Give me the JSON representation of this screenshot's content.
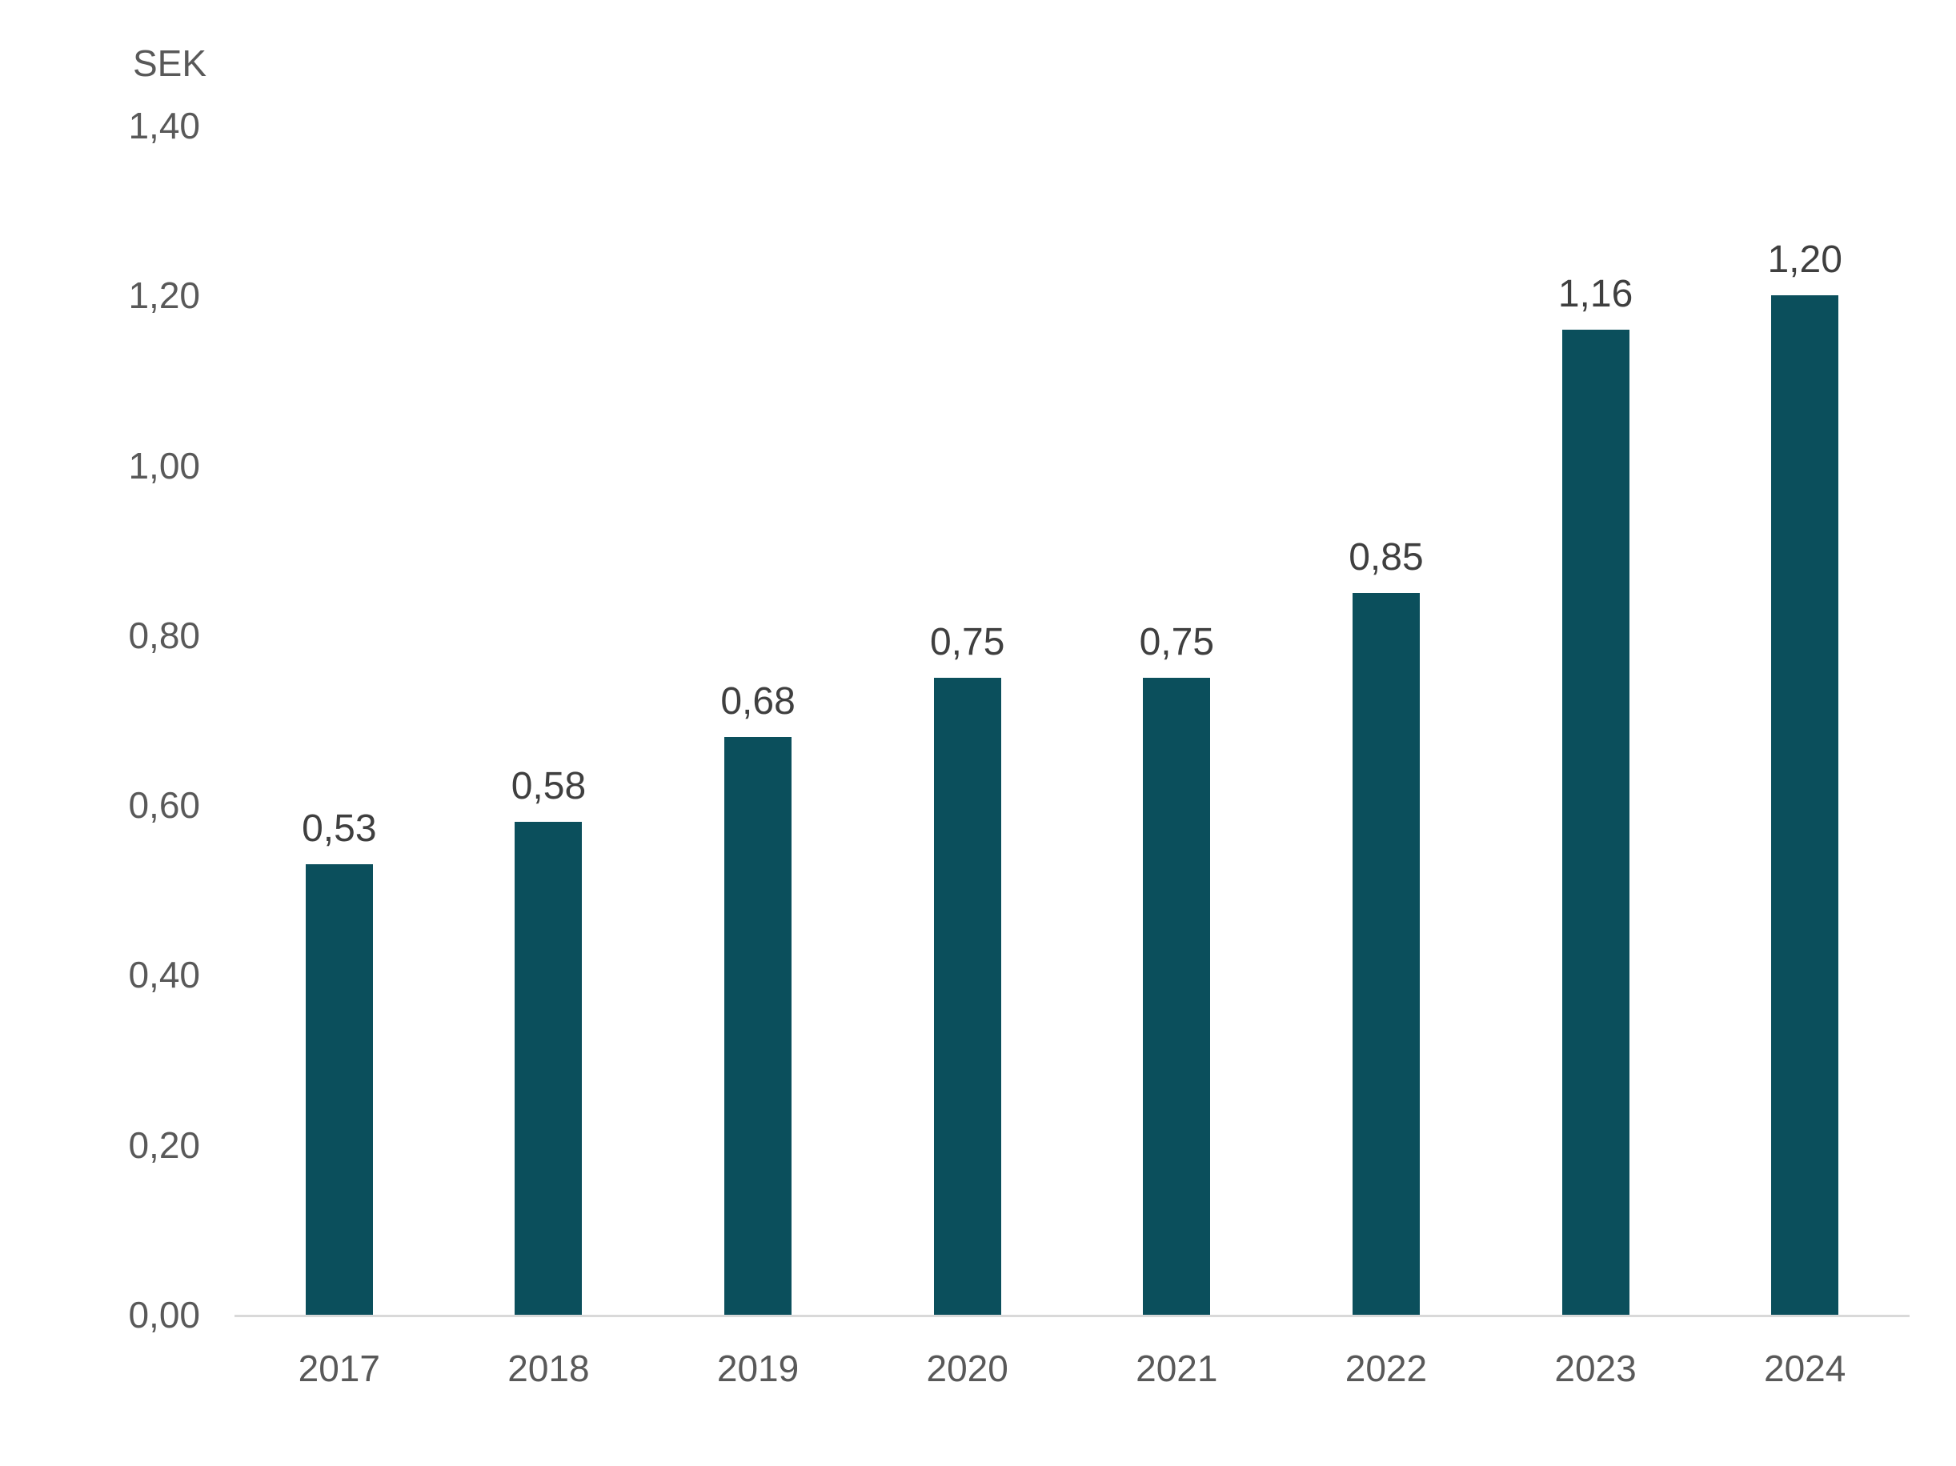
{
  "chart_data": {
    "type": "bar",
    "title": "",
    "ylabel": "SEK",
    "xlabel": "",
    "categories": [
      "2017",
      "2018",
      "2019",
      "2020",
      "2021",
      "2022",
      "2023",
      "2024"
    ],
    "values": [
      0.53,
      0.58,
      0.68,
      0.75,
      0.75,
      0.85,
      1.16,
      1.2
    ],
    "value_labels": [
      "0,53",
      "0,58",
      "0,68",
      "0,75",
      "0,75",
      "0,85",
      "1,16",
      "1,20"
    ],
    "ylim": [
      0,
      1.4
    ],
    "ytick_values": [
      0,
      0.2,
      0.4,
      0.6,
      0.8,
      1.0,
      1.2,
      1.4
    ],
    "ytick_labels": [
      "0,00",
      "0,20",
      "0,40",
      "0,60",
      "0,80",
      "1,00",
      "1,20",
      "1,40"
    ],
    "grid": false,
    "legend": "none",
    "colors": {
      "bar": "#0b4f5c",
      "value_label_text": "#3f3f3f",
      "axis_tick_text": "#595959",
      "axis_line": "#d9d9d9",
      "background": "#ffffff"
    }
  }
}
